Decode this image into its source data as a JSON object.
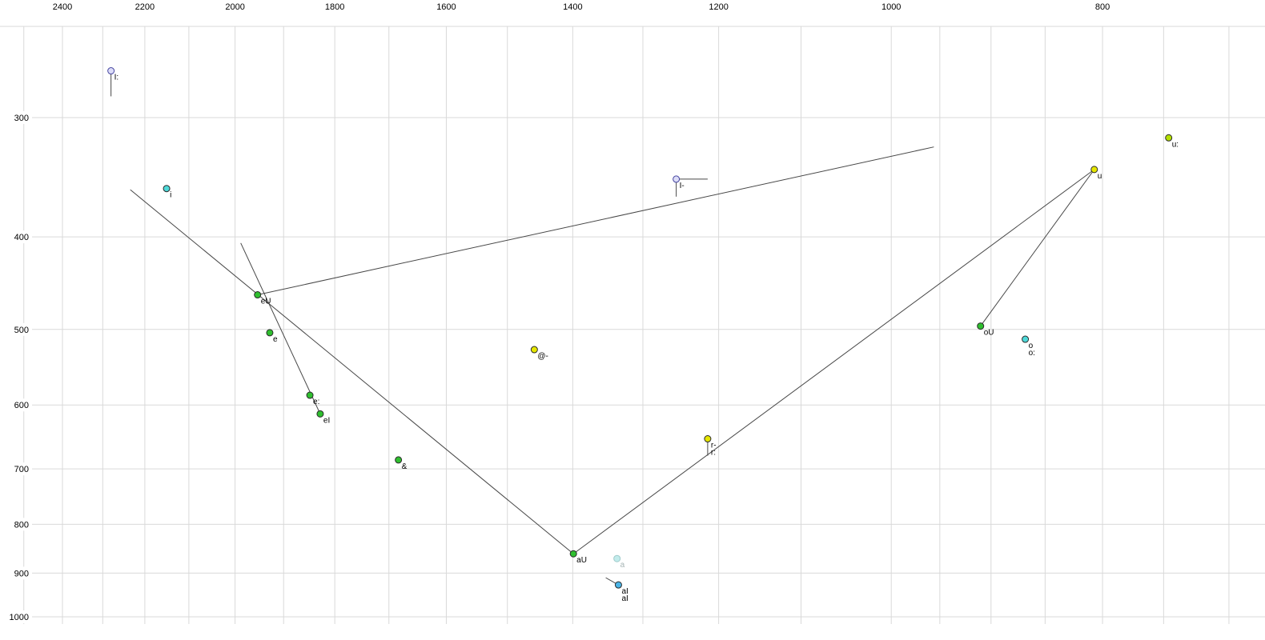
{
  "chart_data": {
    "type": "scatter",
    "title": "",
    "description": "Vowel formant plot (F2 horizontal reversed log scale in Hz, F1 vertical log scale in Hz) with diphthong trajectory lines and standard-deviation whiskers",
    "axes": {
      "x": {
        "unit": "Hz",
        "scale": "log",
        "reversed": true,
        "range": [
          2500,
          675
        ]
      },
      "y": {
        "unit": "Hz",
        "scale": "log",
        "reversed": false,
        "range": [
          240,
          1030
        ]
      }
    },
    "x_tick_labels": [
      2400,
      2200,
      2000,
      1800,
      1600,
      1400,
      1200,
      1000,
      800
    ],
    "y_tick_labels": [
      300,
      400,
      500,
      600,
      700,
      800,
      900,
      1000
    ],
    "x_gridlines_hz": [
      2500,
      2400,
      2300,
      2200,
      2100,
      2000,
      1900,
      1800,
      1700,
      1600,
      1500,
      1400,
      1300,
      1200,
      1100,
      1000,
      950,
      900,
      850,
      800,
      750,
      700
    ],
    "y_gridlines_hz": [
      300,
      400,
      500,
      600,
      700,
      800,
      900,
      1000
    ],
    "colors": {
      "background": "#ffffff",
      "grid": "#d9d9d9",
      "line": "#474747",
      "tick_text": "#000000",
      "label_text": "#000000"
    },
    "points": [
      {
        "label": "I:",
        "f2": 2280,
        "f1": 268,
        "fill": "#dcdcf8",
        "stroke": "#4646a0",
        "whiskers": [
          {
            "axis": "f1",
            "to": 285
          }
        ]
      },
      {
        "label": "i",
        "f2": 2150,
        "f1": 356,
        "fill": "#4ed9d9",
        "stroke": "#2a2a2a"
      },
      {
        "label": "u:",
        "f2": 746,
        "f1": 315,
        "fill": "#b4e000",
        "stroke": "#2a2a2a"
      },
      {
        "label": "u",
        "f2": 807,
        "f1": 340,
        "fill": "#e6e600",
        "stroke": "#2a2a2a"
      },
      {
        "label": "I-",
        "f2": 1255,
        "f1": 348,
        "fill": "#dcdcf8",
        "stroke": "#4646a0",
        "whiskers": [
          {
            "axis": "f1",
            "to": 363
          },
          {
            "axis": "f2",
            "to": 1214
          }
        ]
      },
      {
        "label": "eU",
        "f2": 1953,
        "f1": 460,
        "fill": "#2fbf2f",
        "stroke": "#2a2a2a"
      },
      {
        "label": "e",
        "f2": 1928,
        "f1": 504,
        "fill": "#2fbf2f",
        "stroke": "#2a2a2a"
      },
      {
        "label": "e:",
        "f2": 1848,
        "f1": 586,
        "fill": "#2fbf2f",
        "stroke": "#2a2a2a"
      },
      {
        "label": "eI",
        "f2": 1828,
        "f1": 613,
        "fill": "#2fbf2f",
        "stroke": "#2a2a2a"
      },
      {
        "label": "&",
        "f2": 1683,
        "f1": 685,
        "fill": "#2fbf2f",
        "stroke": "#2a2a2a"
      },
      {
        "label": "@-",
        "f2": 1458,
        "f1": 525,
        "fill": "#e6e600",
        "stroke": "#2a2a2a"
      },
      {
        "label": "r-",
        "label2": "r:",
        "f2": 1214,
        "f1": 651,
        "fill": "#e6e600",
        "stroke": "#2a2a2a",
        "whiskers": [
          {
            "axis": "f1",
            "to": 678
          }
        ]
      },
      {
        "label": "oU",
        "f2": 910,
        "f1": 496,
        "fill": "#2fbf2f",
        "stroke": "#2a2a2a"
      },
      {
        "label": "o",
        "label2": "o:",
        "f2": 868,
        "f1": 512,
        "fill": "#4ed9d9",
        "stroke": "#2a2a2a"
      },
      {
        "label": "aU",
        "f2": 1399,
        "f1": 859,
        "fill": "#2fbf2f",
        "stroke": "#2a2a2a"
      },
      {
        "label": "a",
        "f2": 1336,
        "f1": 869,
        "fill": "#c2ecec",
        "stroke": "#9fcaca",
        "label_color": "#a6b4b4"
      },
      {
        "label": "aI",
        "label2": "aI",
        "f2": 1334,
        "f1": 926,
        "fill": "#4ab4e6",
        "stroke": "#2a2a2a"
      }
    ],
    "segments": [
      {
        "f2a": 2234,
        "f1a": 357,
        "f2b": 1399,
        "f1b": 859
      },
      {
        "f2a": 1988,
        "f1a": 406,
        "f2b": 1828,
        "f1b": 613
      },
      {
        "f2a": 1953,
        "f1a": 460,
        "f2b": 956,
        "f1b": 322
      },
      {
        "f2a": 1399,
        "f1a": 859,
        "f2b": 807,
        "f1b": 340
      },
      {
        "f2a": 910,
        "f1a": 496,
        "f2b": 807,
        "f1b": 340
      },
      {
        "f2a": 1352,
        "f1a": 910,
        "f2b": 1334,
        "f1b": 926
      }
    ]
  }
}
